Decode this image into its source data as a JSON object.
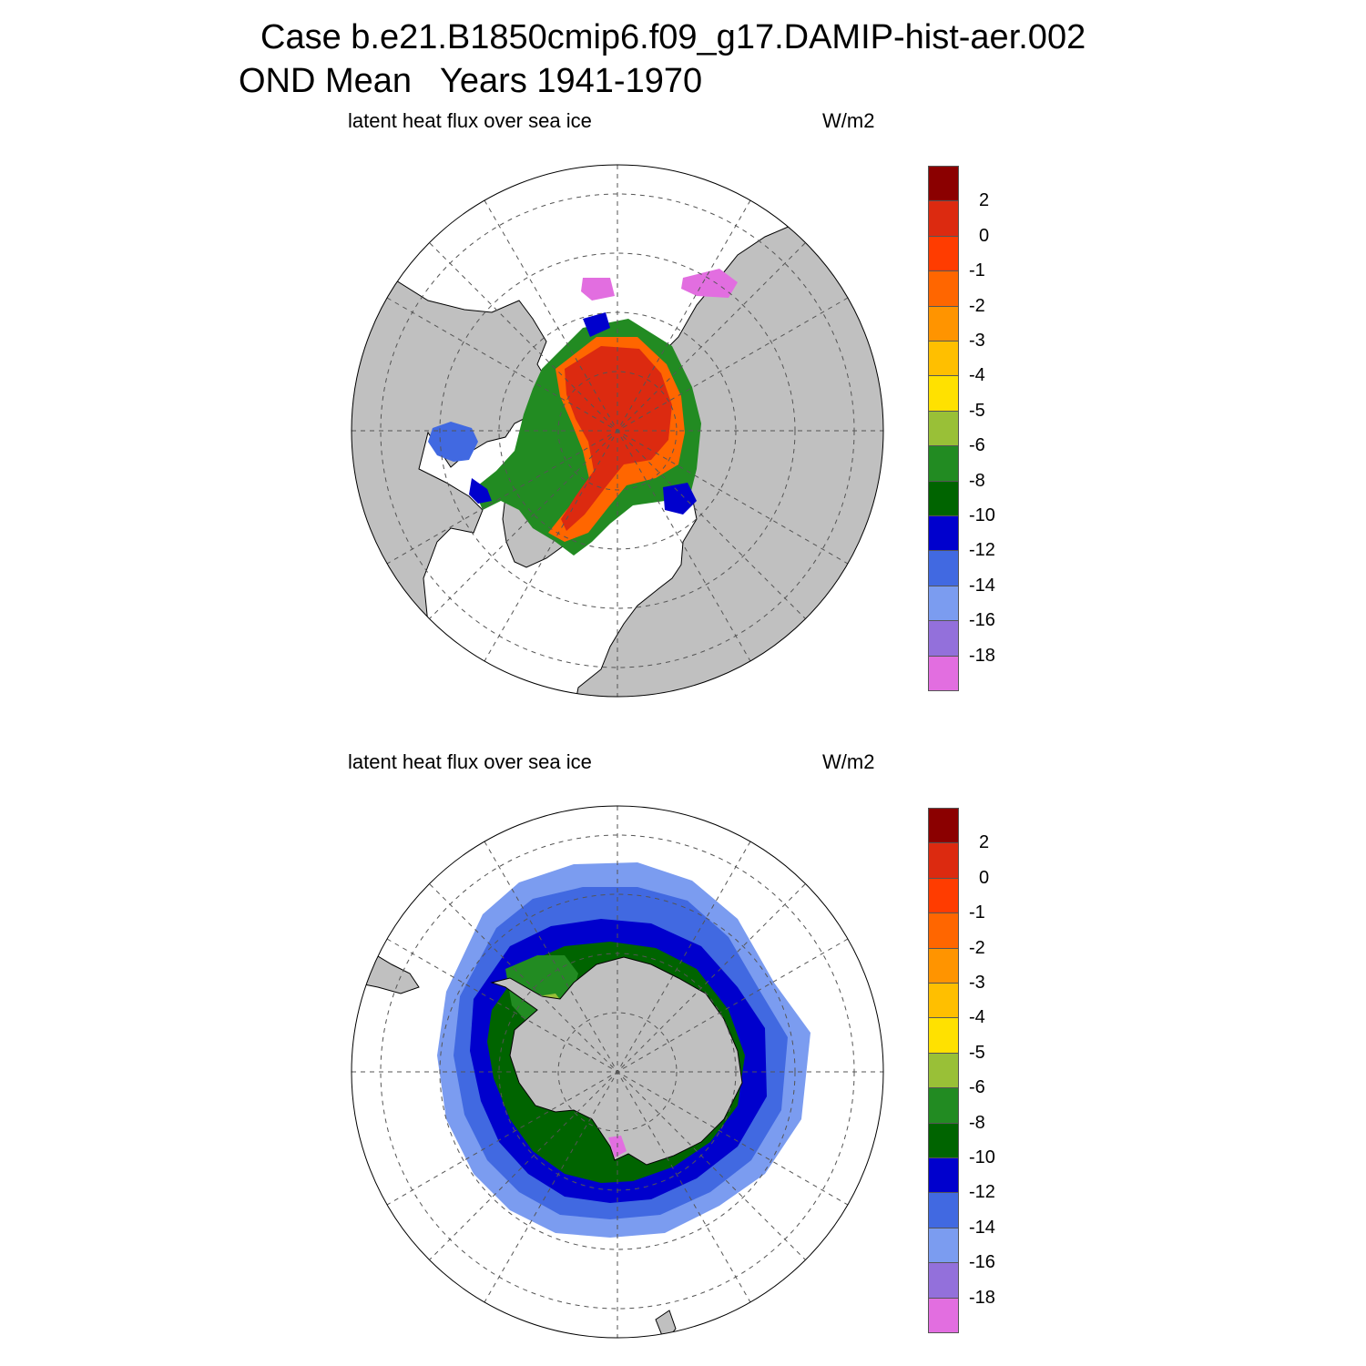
{
  "title": {
    "line1": "Case b.e21.B1850cmip6.f09_g17.DAMIP-hist-aer.002",
    "line2": "OND Mean   Years 1941-1970"
  },
  "panels": [
    {
      "id": "north",
      "variable": "latent heat flux over sea ice",
      "units": "W/m2"
    },
    {
      "id": "south",
      "variable": "latent heat flux over sea ice",
      "units": "W/m2"
    }
  ],
  "colorbar": {
    "labels": [
      "2",
      "0",
      "-1",
      "-2",
      "-3",
      "-4",
      "-5",
      "-6",
      "-8",
      "-10",
      "-12",
      "-14",
      "-16",
      "-18"
    ],
    "colors": [
      "#8b0000",
      "#dc2a10",
      "#ff3c00",
      "#ff6600",
      "#ff9400",
      "#ffbf00",
      "#ffe100",
      "#99c037",
      "#228b22",
      "#006400",
      "#0000cd",
      "#4169e1",
      "#7b9cf0",
      "#9370db",
      "#e26ee0"
    ]
  },
  "map_colors": {
    "land": "#c0c0c0",
    "ocean": "#ffffff",
    "coast": "#000000",
    "grid": "#555555"
  }
}
